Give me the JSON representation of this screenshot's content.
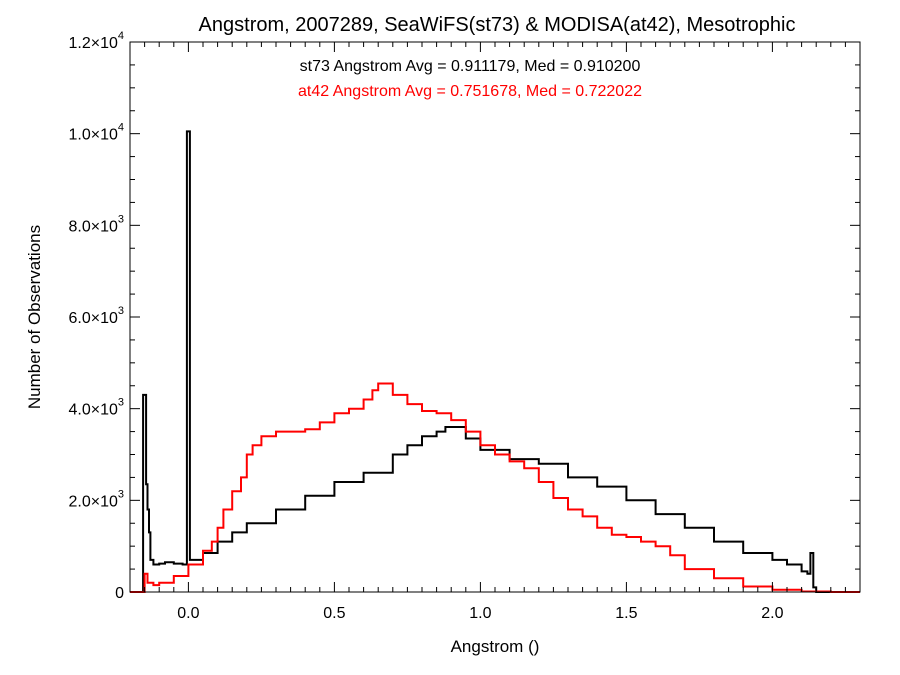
{
  "chart_data": {
    "type": "line",
    "title": "Angstrom, 2007289, SeaWiFS(st73) & MODISA(at42), Mesotrophic",
    "xlabel": "Angstrom ()",
    "ylabel": "Number of Observations",
    "xlim": [
      -0.2,
      2.3
    ],
    "ylim": [
      0,
      12000
    ],
    "x_ticks": [
      0.0,
      0.5,
      1.0,
      1.5,
      2.0
    ],
    "x_tick_labels": [
      "0.0",
      "0.5",
      "1.0",
      "1.5",
      "2.0"
    ],
    "y_ticks": [
      0,
      2000,
      4000,
      6000,
      8000,
      10000,
      12000
    ],
    "y_tick_labels": [
      {
        "mantissa": "0",
        "exp": ""
      },
      {
        "mantissa": "2.0×10",
        "exp": "3"
      },
      {
        "mantissa": "4.0×10",
        "exp": "3"
      },
      {
        "mantissa": "6.0×10",
        "exp": "3"
      },
      {
        "mantissa": "8.0×10",
        "exp": "3"
      },
      {
        "mantissa": "1.0×10",
        "exp": "4"
      },
      {
        "mantissa": "1.2×10",
        "exp": "4"
      }
    ],
    "annotations": [
      {
        "text": "st73 Angstrom Avg = 0.911179, Med = 0.910200",
        "color": "#000000"
      },
      {
        "text": "at42 Angstrom Avg = 0.751678, Med = 0.722022",
        "color": "#ff0000"
      }
    ],
    "series": [
      {
        "color": "#000000",
        "style": "histogram-step",
        "x": [
          -0.2,
          -0.175,
          -0.16,
          -0.155,
          -0.15,
          -0.145,
          -0.14,
          -0.135,
          -0.13,
          -0.12,
          -0.1,
          -0.08,
          -0.05,
          -0.02,
          -0.005,
          0.0,
          0.005,
          0.01,
          0.05,
          0.1,
          0.15,
          0.2,
          0.3,
          0.4,
          0.5,
          0.6,
          0.7,
          0.75,
          0.8,
          0.85,
          0.88,
          0.9,
          0.95,
          1.0,
          1.1,
          1.2,
          1.3,
          1.4,
          1.5,
          1.6,
          1.7,
          1.8,
          1.9,
          2.0,
          2.05,
          2.1,
          2.12,
          2.13,
          2.14,
          2.15,
          2.2,
          2.3
        ],
        "y": [
          0,
          0,
          0,
          4300,
          4300,
          2350,
          1800,
          1300,
          700,
          600,
          620,
          650,
          620,
          600,
          10050,
          10050,
          700,
          700,
          850,
          1100,
          1300,
          1500,
          1800,
          2100,
          2400,
          2600,
          3000,
          3200,
          3400,
          3500,
          3600,
          3600,
          3350,
          3100,
          2900,
          2800,
          2500,
          2300,
          2000,
          1700,
          1400,
          1100,
          850,
          700,
          600,
          450,
          400,
          850,
          100,
          0,
          0,
          0
        ]
      },
      {
        "color": "#ff0000",
        "style": "histogram-step",
        "x": [
          -0.2,
          -0.16,
          -0.15,
          -0.14,
          -0.12,
          -0.1,
          -0.05,
          0.0,
          0.05,
          0.08,
          0.1,
          0.12,
          0.15,
          0.18,
          0.2,
          0.22,
          0.25,
          0.3,
          0.35,
          0.4,
          0.45,
          0.5,
          0.55,
          0.6,
          0.63,
          0.65,
          0.67,
          0.7,
          0.75,
          0.8,
          0.85,
          0.9,
          0.95,
          1.0,
          1.05,
          1.1,
          1.15,
          1.2,
          1.25,
          1.3,
          1.35,
          1.4,
          1.45,
          1.5,
          1.55,
          1.6,
          1.65,
          1.7,
          1.8,
          1.9,
          2.0,
          2.1,
          2.2,
          2.3
        ],
        "y": [
          0,
          0,
          400,
          200,
          150,
          200,
          350,
          600,
          900,
          1100,
          1400,
          1800,
          2200,
          2500,
          3000,
          3200,
          3400,
          3500,
          3500,
          3550,
          3700,
          3900,
          4000,
          4200,
          4400,
          4550,
          4550,
          4300,
          4100,
          3950,
          3900,
          3750,
          3500,
          3200,
          3000,
          2850,
          2700,
          2400,
          2050,
          1800,
          1650,
          1400,
          1250,
          1200,
          1100,
          1000,
          800,
          500,
          300,
          120,
          50,
          10,
          0,
          0
        ]
      }
    ]
  }
}
